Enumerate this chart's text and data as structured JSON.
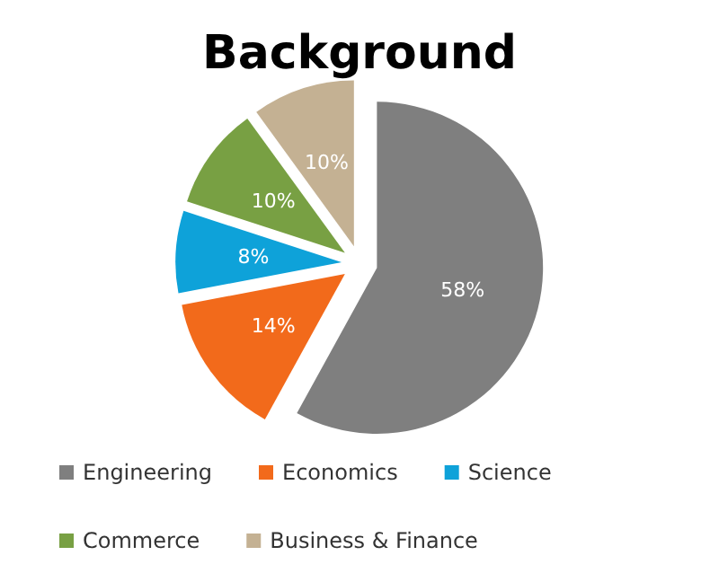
{
  "chart_data": {
    "type": "pie",
    "title": "Background",
    "categories": [
      "Engineering",
      "Economics",
      "Science",
      "Commerce",
      "Business & Finance"
    ],
    "values": [
      58,
      14,
      8,
      10,
      10
    ],
    "colors": [
      "#7f7f7f",
      "#f26a1b",
      "#0ea2d9",
      "#78a043",
      "#c4b193"
    ],
    "value_labels": [
      "58%",
      "14%",
      "8%",
      "10%",
      "10%"
    ],
    "legend": "bottom"
  }
}
